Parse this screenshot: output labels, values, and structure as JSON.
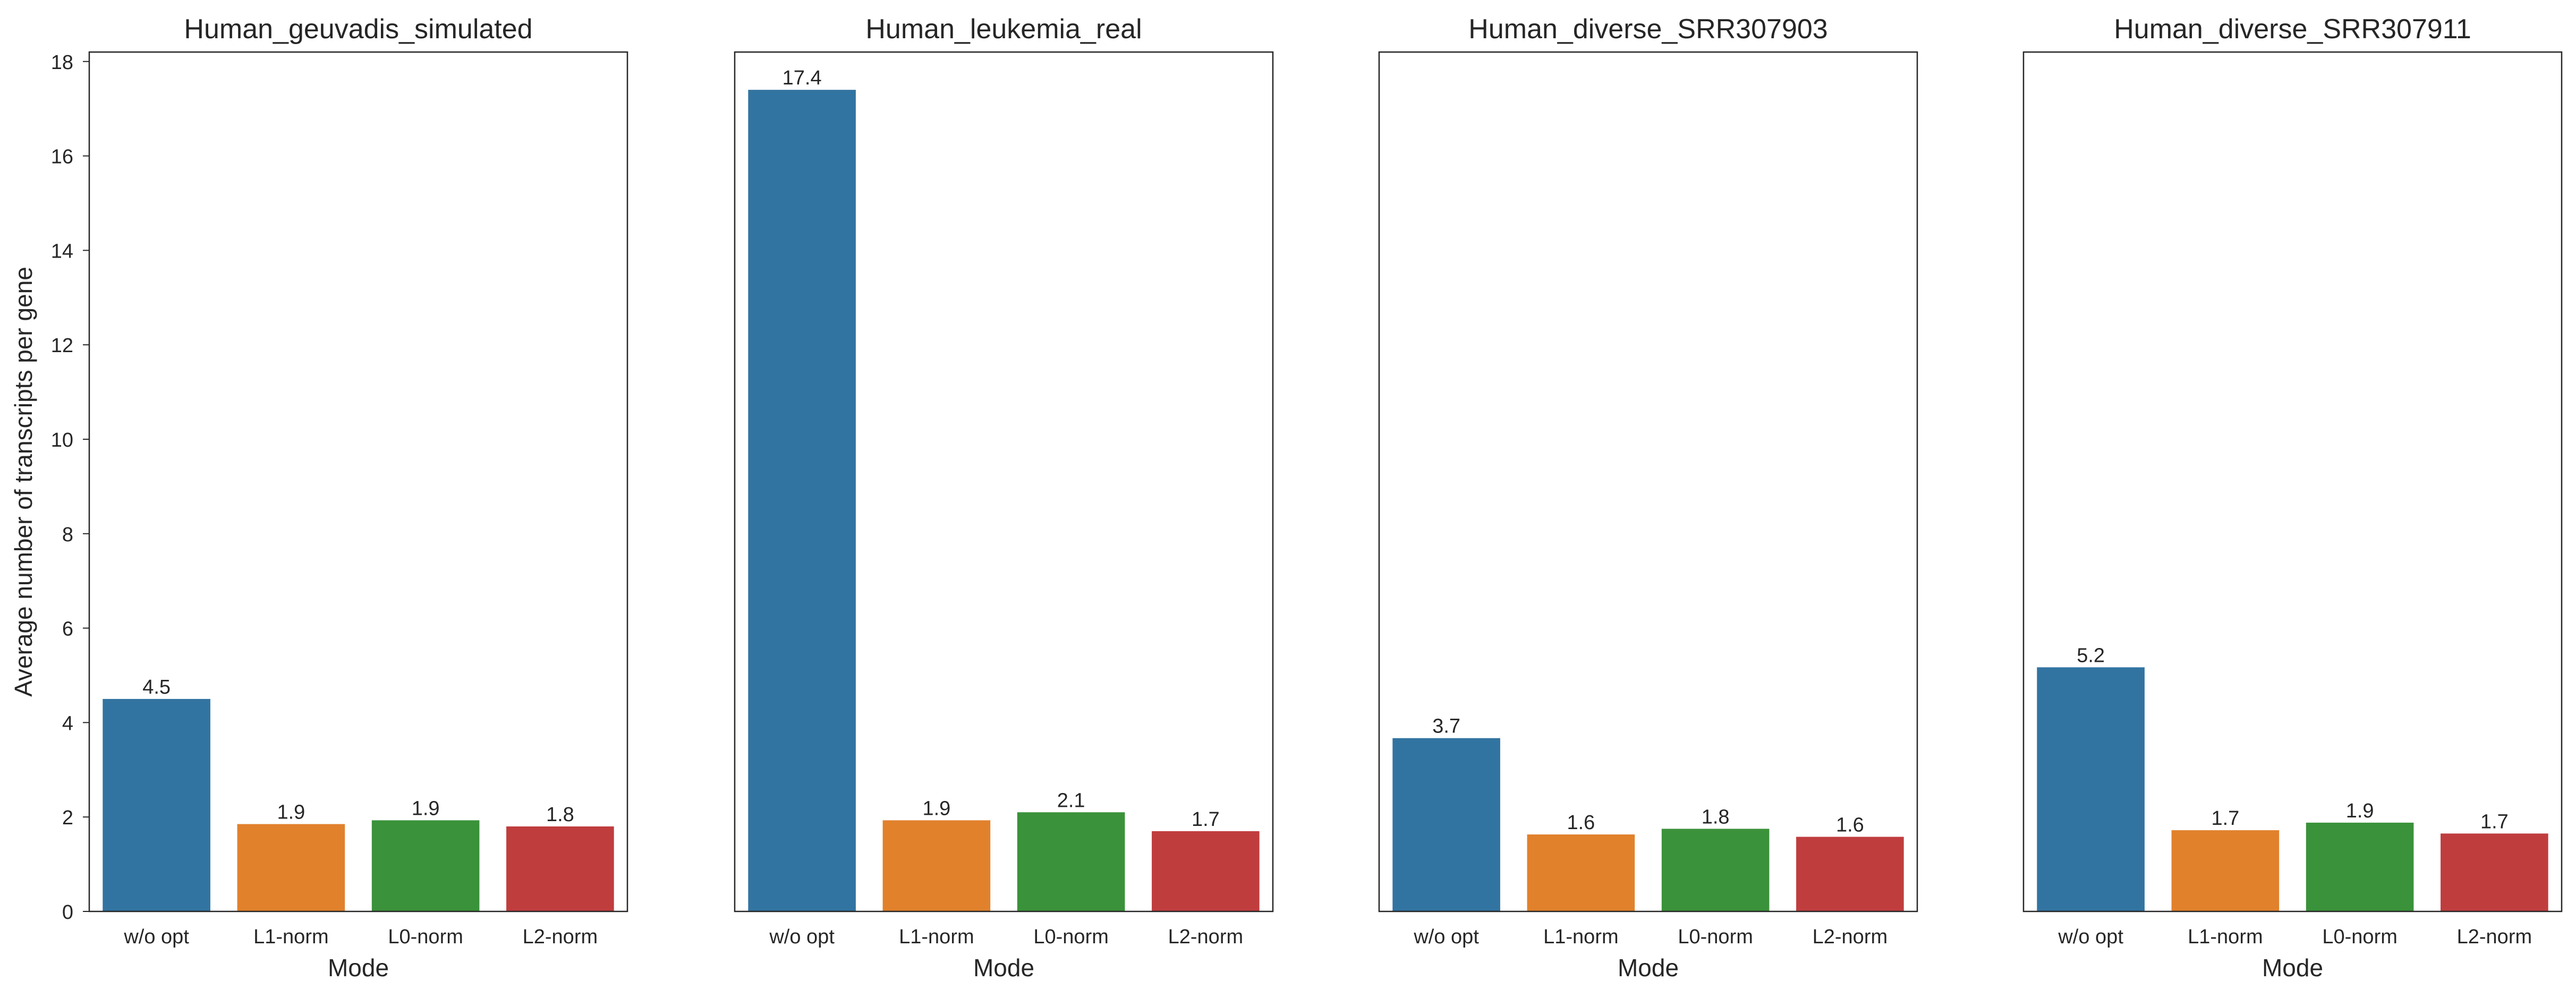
{
  "chart_data": {
    "type": "bar",
    "shared_y": true,
    "ylabel": "Average number of transcripts per gene",
    "ylim": [
      0,
      18.2
    ],
    "yticks": [
      0,
      2,
      4,
      6,
      8,
      10,
      12,
      14,
      16,
      18
    ],
    "grid": false,
    "xlabel": "Mode",
    "categories": [
      "w/o opt",
      "L1-norm",
      "L0-norm",
      "L2-norm"
    ],
    "colors": [
      "#3274a1",
      "#e1812c",
      "#3a923a",
      "#c03d3e"
    ],
    "panels": [
      {
        "title": "Human_geuvadis_simulated",
        "values": [
          4.5,
          1.85,
          1.93,
          1.8
        ],
        "labels": [
          "4.5",
          "1.9",
          "1.9",
          "1.8"
        ]
      },
      {
        "title": "Human_leukemia_real",
        "values": [
          17.4,
          1.93,
          2.1,
          1.7
        ],
        "labels": [
          "17.4",
          "1.9",
          "2.1",
          "1.7"
        ]
      },
      {
        "title": "Human_diverse_SRR307903",
        "values": [
          3.67,
          1.63,
          1.75,
          1.58
        ],
        "labels": [
          "3.7",
          "1.6",
          "1.8",
          "1.6"
        ]
      },
      {
        "title": "Human_diverse_SRR307911",
        "values": [
          5.17,
          1.72,
          1.88,
          1.65
        ],
        "labels": [
          "5.2",
          "1.7",
          "1.9",
          "1.7"
        ]
      }
    ]
  }
}
